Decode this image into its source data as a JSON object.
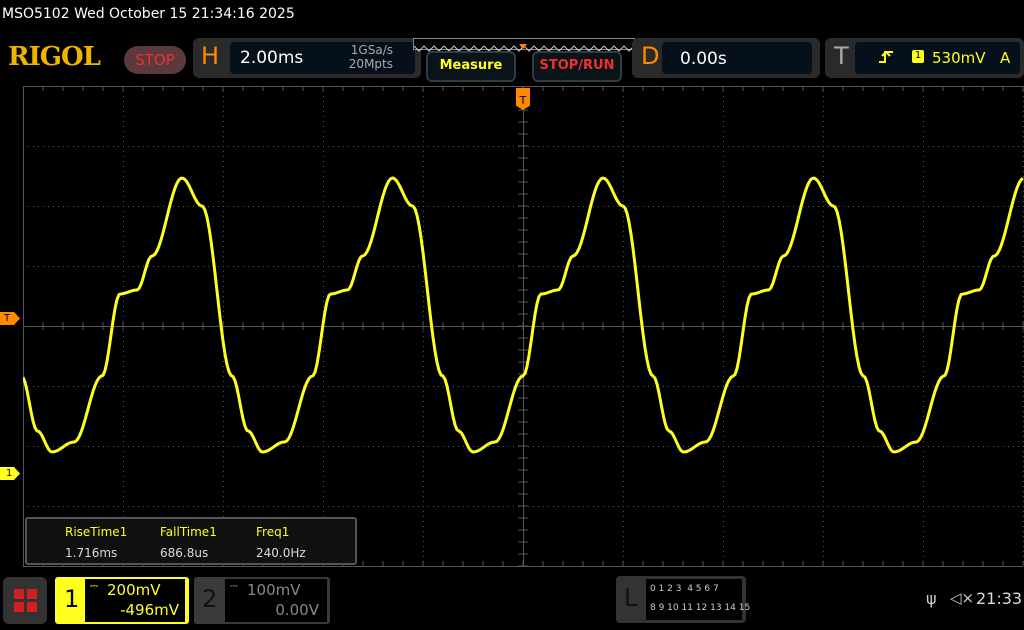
{
  "header": {
    "title": "MSO5102  Wed October 15 21:34:16 2025",
    "logo": "RIGOL",
    "run_state": "STOP",
    "horizontal": {
      "letter": "H",
      "timebase": "2.00ms",
      "sample_rate": "1GSa/s",
      "memory_depth": "20Mpts"
    },
    "measure_label": "Measure",
    "stop_run_label": "STOP/RUN",
    "delay": {
      "letter": "D",
      "value": "0.00s"
    },
    "trigger": {
      "letter": "T",
      "source": "1",
      "level": "530mV",
      "mode": "A",
      "slope_icon": "rising-edge-icon"
    }
  },
  "markers": {
    "trigger_position": "T",
    "trigger_level": "T",
    "ch1_ground": "1"
  },
  "measurements": [
    {
      "name": "RiseTime1",
      "value": "1.716ms"
    },
    {
      "name": "FallTime1",
      "value": "686.8us"
    },
    {
      "name": "Freq1",
      "value": "240.0Hz"
    }
  ],
  "channels": [
    {
      "num": "1",
      "scale": "200mV",
      "offset": "-496mV",
      "color": "#ffff20"
    },
    {
      "num": "2",
      "scale": "100mV",
      "offset": "0.00V",
      "color": "#888888"
    }
  ],
  "logic": {
    "letter": "L",
    "row1": "0 1 2 3  4 5 6 7",
    "row2": "8 9 10 11 12 13 14 15"
  },
  "status": {
    "time": "21:33",
    "usb_icon": "usb-icon",
    "sound_icon": "speaker-muted-icon"
  },
  "colors": {
    "trace": "#ffff20",
    "accent": "#ff8a00",
    "stop": "#f03030"
  }
}
